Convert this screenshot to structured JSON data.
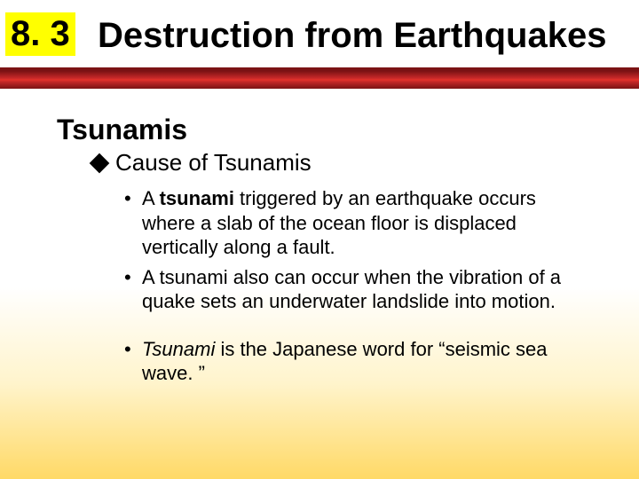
{
  "colors": {
    "highlight_bg": "#ffff00",
    "title_bar_start": "#7a1214",
    "title_bar_mid": "#e4322b",
    "text": "#000000",
    "slide_gradient_top": "#ffffff",
    "slide_gradient_mid": "#fff4cc",
    "slide_gradient_bottom": "#ffd966"
  },
  "fonts": {
    "family": "Arial",
    "title_size_pt": 30,
    "heading_size_pt": 24,
    "subheading_size_pt": 20,
    "body_size_pt": 16
  },
  "title": {
    "section_number": "8. 3",
    "text": "Destruction from Earthquakes"
  },
  "heading": "Tsunamis",
  "subheading": "Cause of Tsunamis",
  "bullets": {
    "b1_prefix": " A ",
    "b1_bold": "tsunami",
    "b1_rest": " triggered by an earthquake occurs where a slab of the ocean floor is displaced vertically along a fault.",
    "b2": "A tsunami also can occur when the vibration of a quake sets an underwater landslide into motion.",
    "b3_ital": "Tsunami",
    "b3_rest": " is the Japanese word for “seismic sea wave. ”"
  }
}
